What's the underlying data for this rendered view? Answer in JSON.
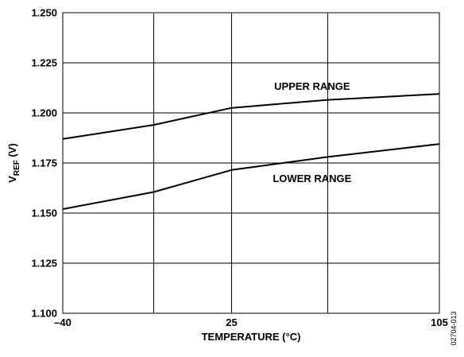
{
  "chart_data": {
    "type": "line",
    "xlabel": "TEMPERATURE (°C)",
    "ylabel": {
      "main": "V",
      "subscript": "REF",
      "suffix": " (V)"
    },
    "xlim": [
      -40,
      105
    ],
    "ylim": [
      1.1,
      1.25
    ],
    "x_ticks": [
      {
        "value": -40,
        "label": "–40"
      },
      {
        "value": 25,
        "label": "25"
      },
      {
        "value": 105,
        "label": "105"
      }
    ],
    "x_gridlines": [
      -40,
      -5,
      25,
      62,
      105
    ],
    "y_ticks": [
      {
        "value": 1.1,
        "label": "1.100"
      },
      {
        "value": 1.125,
        "label": "1.125"
      },
      {
        "value": 1.15,
        "label": "1.150"
      },
      {
        "value": 1.175,
        "label": "1.175"
      },
      {
        "value": 1.2,
        "label": "1.200"
      },
      {
        "value": 1.225,
        "label": "1.225"
      },
      {
        "value": 1.25,
        "label": "1.250"
      }
    ],
    "grid": true,
    "series": [
      {
        "name": "UPPER RANGE",
        "points": [
          [
            -40,
            1.187
          ],
          [
            -5,
            1.194
          ],
          [
            25,
            1.2025
          ],
          [
            62,
            1.2065
          ],
          [
            105,
            1.2095
          ]
        ]
      },
      {
        "name": "LOWER RANGE",
        "points": [
          [
            -40,
            1.152
          ],
          [
            -5,
            1.1605
          ],
          [
            25,
            1.1715
          ],
          [
            62,
            1.178
          ],
          [
            105,
            1.1845
          ]
        ]
      }
    ],
    "annotations": [
      {
        "series": 0,
        "text": "UPPER RANGE",
        "x": 56,
        "y": 1.2115
      },
      {
        "series": 1,
        "text": "LOWER RANGE",
        "x": 56,
        "y": 1.1655
      }
    ],
    "figure_id": "02704-013"
  },
  "colors": {
    "line": "#000000",
    "grid": "#000000",
    "background": "#ffffff"
  }
}
